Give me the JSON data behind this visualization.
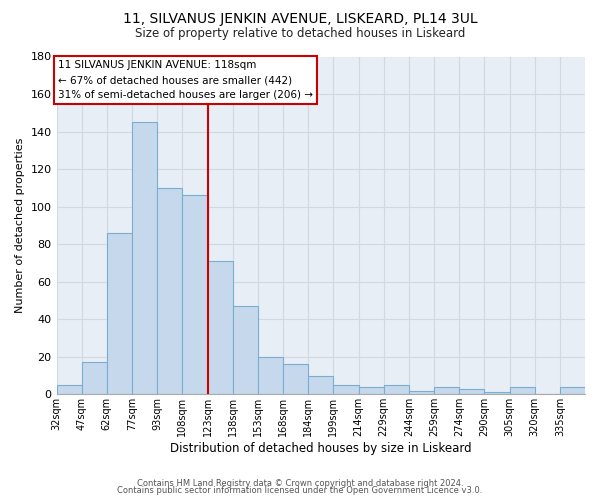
{
  "title": "11, SILVANUS JENKIN AVENUE, LISKEARD, PL14 3UL",
  "subtitle": "Size of property relative to detached houses in Liskeard",
  "xlabel": "Distribution of detached houses by size in Liskeard",
  "ylabel": "Number of detached properties",
  "bin_labels": [
    "32sqm",
    "47sqm",
    "62sqm",
    "77sqm",
    "93sqm",
    "108sqm",
    "123sqm",
    "138sqm",
    "153sqm",
    "168sqm",
    "184sqm",
    "199sqm",
    "214sqm",
    "229sqm",
    "244sqm",
    "259sqm",
    "274sqm",
    "290sqm",
    "305sqm",
    "320sqm",
    "335sqm"
  ],
  "bar_heights": [
    5,
    17,
    86,
    145,
    110,
    106,
    71,
    47,
    20,
    16,
    10,
    5,
    4,
    5,
    2,
    4,
    3,
    1,
    4,
    0,
    4
  ],
  "bar_color": "#c6d9ec",
  "bar_edge_color": "#7aadce",
  "vline_color": "#cc0000",
  "ylim": [
    0,
    180
  ],
  "yticks": [
    0,
    20,
    40,
    60,
    80,
    100,
    120,
    140,
    160,
    180
  ],
  "annotation_title": "11 SILVANUS JENKIN AVENUE: 118sqm",
  "annotation_line1": "← 67% of detached houses are smaller (442)",
  "annotation_line2": "31% of semi-detached houses are larger (206) →",
  "footer_line1": "Contains HM Land Registry data © Crown copyright and database right 2024.",
  "footer_line2": "Contains public sector information licensed under the Open Government Licence v3.0.",
  "bg_color": "#e8eef5",
  "fig_bg_color": "#ffffff",
  "grid_color": "#d0d8e4",
  "vline_index": 6
}
